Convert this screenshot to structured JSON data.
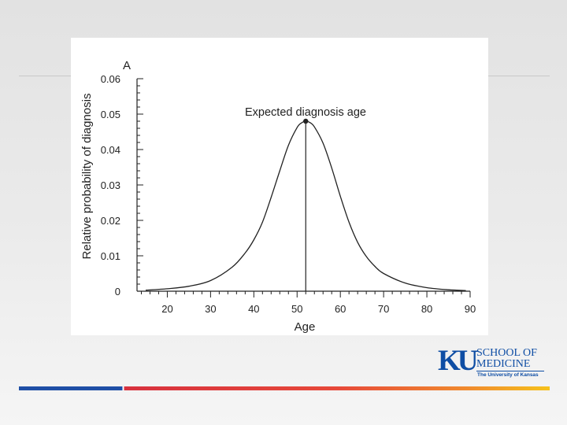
{
  "chart_data": {
    "type": "line",
    "panel_label": "A",
    "xlabel": "Age",
    "ylabel": "Relative probability of diagnosis",
    "xlim": [
      13,
      90
    ],
    "ylim": [
      0,
      0.06
    ],
    "x_ticks": [
      "20",
      "30",
      "40",
      "50",
      "60",
      "70",
      "80",
      "90"
    ],
    "y_ticks": [
      "0",
      "0.01",
      "0.02",
      "0.03",
      "0.04",
      "0.05",
      "0.06"
    ],
    "series": [
      {
        "x": [
          15,
          20,
          25,
          30,
          35,
          38,
          40,
          42,
          44,
          46,
          48,
          50,
          51,
          52,
          53,
          54,
          56,
          58,
          60,
          62,
          64,
          66,
          68,
          70,
          75,
          80,
          85,
          89
        ],
        "y": [
          0.0003,
          0.0007,
          0.0014,
          0.003,
          0.0068,
          0.0108,
          0.0145,
          0.0195,
          0.0265,
          0.034,
          0.0412,
          0.0462,
          0.0475,
          0.048,
          0.0476,
          0.0464,
          0.0418,
          0.0348,
          0.0268,
          0.0195,
          0.0138,
          0.0098,
          0.007,
          0.005,
          0.0023,
          0.001,
          0.0004,
          0.0002
        ]
      }
    ],
    "annotation": {
      "text": "Expected diagnosis age",
      "x": 52,
      "y": 0.048
    },
    "grid": false,
    "legend": "none"
  },
  "logo": {
    "mark": "KU",
    "line1": "SCHOOL OF",
    "line2": "MEDICINE",
    "line3": "The University of Kansas"
  },
  "colors": {
    "logo_blue": "#0e4da4",
    "bar_blue": "#1f4fa6",
    "bar_red": "#d7313e",
    "bar_orange": "#f08c2e",
    "bar_yellow": "#f6c21c"
  }
}
